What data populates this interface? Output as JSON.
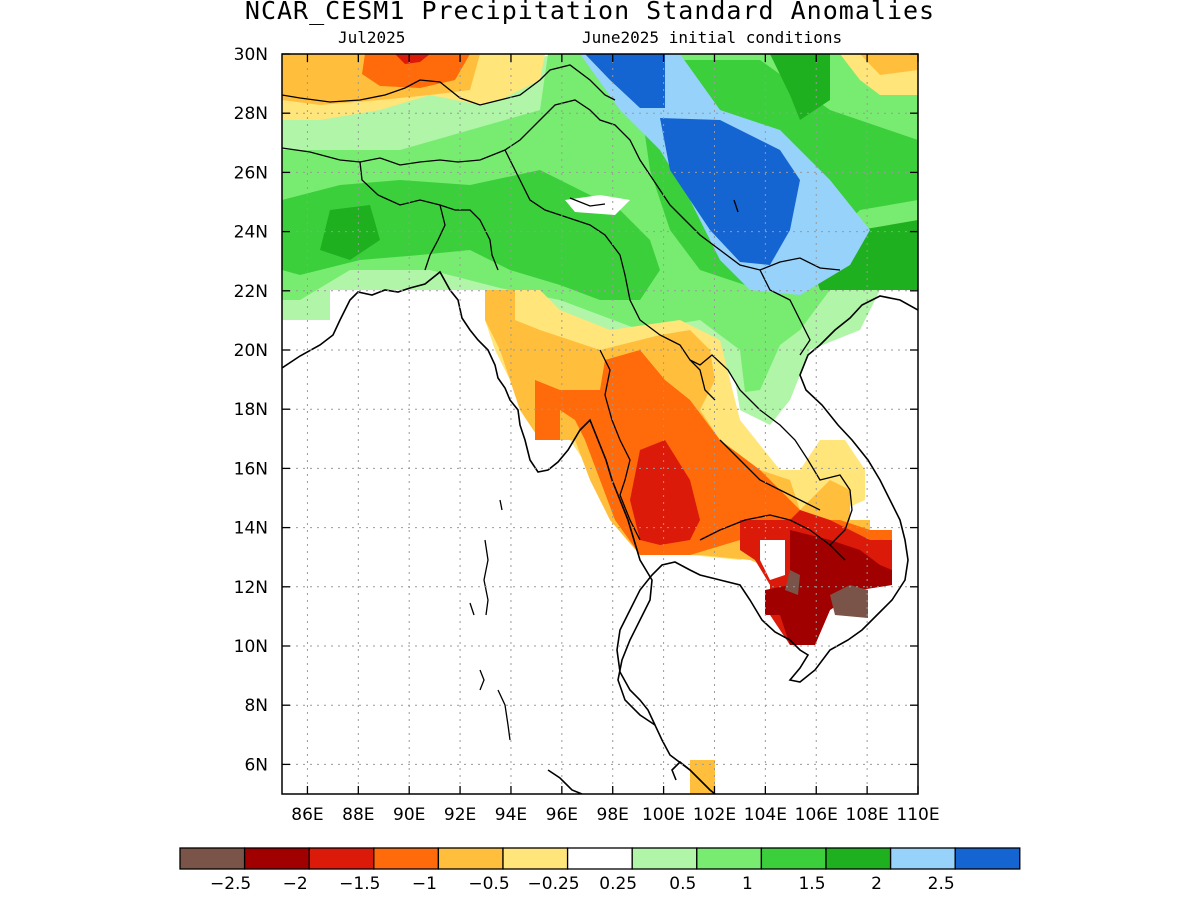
{
  "title": "NCAR_CESM1 Precipitation Standard Anomalies",
  "subtitle_left": "Jul2025",
  "subtitle_right": "June2025 initial conditions",
  "lat_labels": [
    "30N",
    "28N",
    "26N",
    "24N",
    "22N",
    "20N",
    "18N",
    "16N",
    "14N",
    "12N",
    "10N",
    "8N",
    "6N"
  ],
  "lon_labels": [
    "86E",
    "88E",
    "90E",
    "92E",
    "94E",
    "96E",
    "98E",
    "100E",
    "102E",
    "104E",
    "106E",
    "108E",
    "110E"
  ],
  "map_extent": {
    "lon_min": 85,
    "lon_max": 110,
    "lat_min": 5,
    "lat_max": 30
  },
  "colorbar": {
    "colors": [
      "#7a5448",
      "#a00000",
      "#dc1a0a",
      "#ff6a0a",
      "#ffbf3d",
      "#ffe57a",
      "#ffffff",
      "#b0f5a8",
      "#78ec70",
      "#3ccf3c",
      "#1eb01e",
      "#96d2fa",
      "#1464d2"
    ],
    "labels": [
      "−2.5",
      "−2",
      "−1.5",
      "−1",
      "−0.5",
      "−0.25",
      "0.25",
      "0.5",
      "1",
      "1.5",
      "2",
      "2.5"
    ]
  },
  "anomaly_regions": [
    {
      "category": "light green",
      "color": "#b0f5a8",
      "lon": [
        85,
        110
      ],
      "lat": [
        17,
        30
      ]
    },
    {
      "category": "green",
      "color": "#78ec70",
      "lon": [
        85,
        110
      ],
      "lat": [
        20,
        30
      ]
    },
    {
      "category": "medium green",
      "color": "#3ccf3c",
      "lon": [
        85,
        105
      ],
      "lat": [
        21,
        26
      ]
    },
    {
      "category": "dark green",
      "color": "#1eb01e",
      "lon": [
        104,
        110
      ],
      "lat": [
        22,
        29
      ]
    },
    {
      "category": "light blue",
      "color": "#96d2fa",
      "lon": [
        99,
        108
      ],
      "lat": [
        22,
        30
      ]
    },
    {
      "category": "blue",
      "color": "#1464d2",
      "lon": [
        97,
        105
      ],
      "lat": [
        23,
        30
      ]
    },
    {
      "category": "yellow",
      "color": "#ffe57a",
      "lon": [
        85,
        110
      ],
      "lat": [
        27,
        30
      ]
    },
    {
      "category": "orange",
      "color": "#ffbf3d",
      "lon": [
        85,
        92
      ],
      "lat": [
        28,
        30
      ]
    },
    {
      "category": "dark orange",
      "color": "#ff6a0a",
      "lon": [
        88,
        92
      ],
      "lat": [
        29,
        30
      ]
    },
    {
      "category": "orange",
      "color": "#ffbf3d",
      "lon": [
        93,
        108
      ],
      "lat": [
        13,
        21
      ]
    },
    {
      "category": "dark orange",
      "color": "#ff6a0a",
      "lon": [
        95,
        107
      ],
      "lat": [
        13,
        19
      ]
    },
    {
      "category": "red",
      "color": "#dc1a0a",
      "lon": [
        99,
        109
      ],
      "lat": [
        11,
        16
      ]
    },
    {
      "category": "dark red",
      "color": "#a00000",
      "lon": [
        104,
        109
      ],
      "lat": [
        10,
        13
      ]
    },
    {
      "category": "brown",
      "color": "#7a5448",
      "lon": [
        105,
        108
      ],
      "lat": [
        11,
        12
      ]
    }
  ]
}
